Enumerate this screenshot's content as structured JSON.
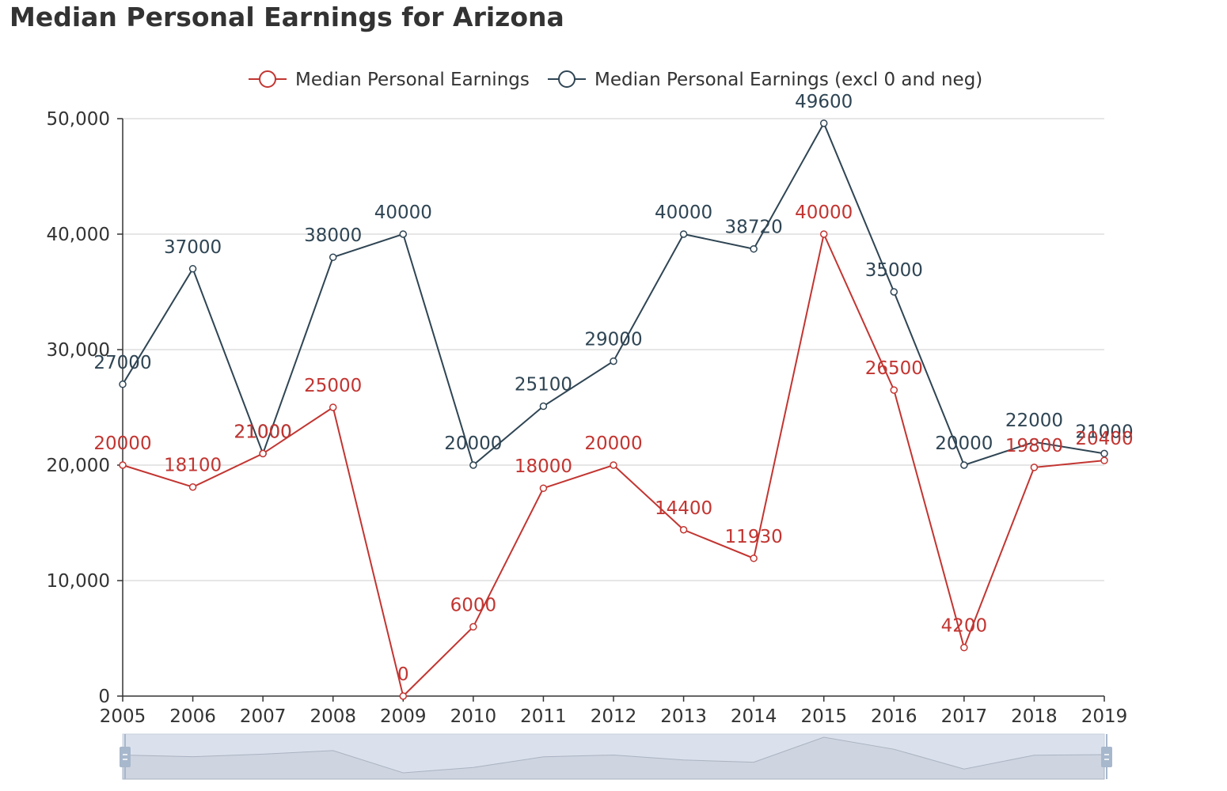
{
  "chart_data": {
    "type": "line",
    "title": "Median Personal Earnings for Arizona",
    "x": [
      "2005",
      "2006",
      "2007",
      "2008",
      "2009",
      "2010",
      "2011",
      "2012",
      "2013",
      "2014",
      "2015",
      "2016",
      "2017",
      "2018",
      "2019"
    ],
    "series": [
      {
        "name": "Median Personal Earnings",
        "color": "#c23531",
        "values": [
          20000,
          18100,
          21000,
          25000,
          0,
          6000,
          18000,
          20000,
          14400,
          11930,
          40000,
          26500,
          4200,
          19800,
          20400
        ]
      },
      {
        "name": "Median Personal Earnings (excl 0 and neg)",
        "color": "#2f4554",
        "values": [
          27000,
          37000,
          21000,
          38000,
          40000,
          20000,
          25100,
          29000,
          40000,
          38720,
          49600,
          35000,
          20000,
          22000,
          21000
        ]
      }
    ],
    "y_ticks": [
      "0",
      "10,000",
      "20,000",
      "30,000",
      "40,000",
      "50,000"
    ],
    "ylim": [
      0,
      50000
    ],
    "grid": true,
    "legend_position": "top-center",
    "data_zoom": true
  }
}
